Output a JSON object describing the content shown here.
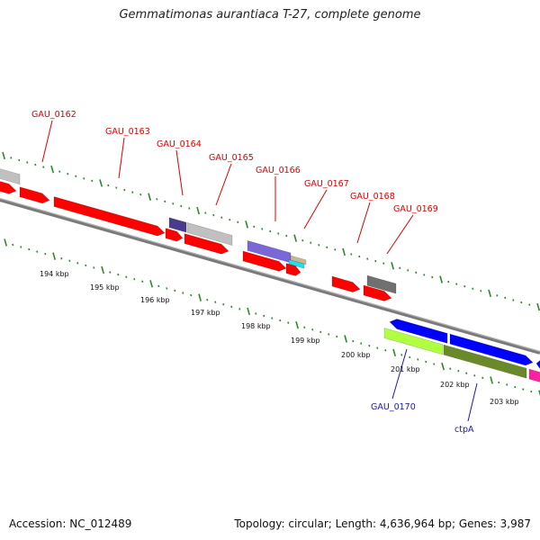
{
  "title": "Gemmatimonas aurantiaca T-27, complete genome",
  "footer": {
    "accession": "Accession: NC_012489",
    "summary": "Topology: circular; Length: 4,636,964 bp; Genes: 3,987"
  },
  "colors": {
    "red": "#ff0000",
    "gray": "#c0c0c0",
    "darkgray": "#707070",
    "indigo": "#4b3b8c",
    "lavender": "#7b68d8",
    "tan": "#c8b890",
    "cyan": "#20e0f0",
    "blue": "#0000ff",
    "lime": "#b0ff40",
    "olive": "#6a8a2a",
    "magenta": "#ff20a0",
    "ticks": "#2a8a2a",
    "backbone": "#808080"
  },
  "kbp_labels": [
    "194 kbp",
    "195 kbp",
    "196 kbp",
    "197 kbp",
    "198 kbp",
    "199 kbp",
    "200 kbp",
    "201 kbp",
    "202 kbp",
    "203 kbp"
  ],
  "gene_labels_top": [
    "GAU_0162",
    "GAU_0163",
    "GAU_0164",
    "GAU_0165",
    "GAU_0166",
    "GAU_0167",
    "GAU_0168",
    "GAU_0169"
  ],
  "gene_labels_bottom": [
    "GAU_0170",
    "ctpA"
  ]
}
